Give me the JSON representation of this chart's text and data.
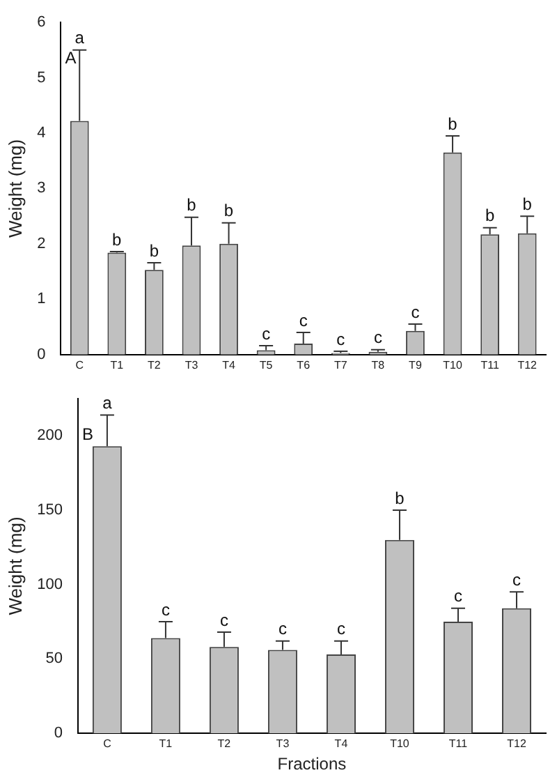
{
  "chart_data": [
    {
      "type": "bar",
      "ylabel": "Weight (mg)",
      "categories": [
        "C",
        "T1",
        "T2",
        "T3",
        "T4",
        "T5",
        "T6",
        "T7",
        "T8",
        "T9",
        "T10",
        "T11",
        "T12"
      ],
      "values": [
        4.22,
        1.84,
        1.53,
        1.97,
        2.0,
        0.08,
        0.2,
        0.03,
        0.05,
        0.43,
        3.65,
        2.17,
        2.19
      ],
      "color": "#c0c0c0",
      "errors": [
        [
          4.22,
          5.5
        ],
        [
          1.84,
          1.86
        ],
        [
          1.53,
          1.66
        ],
        [
          1.97,
          2.48
        ],
        [
          2.0,
          2.38
        ],
        [
          0.08,
          0.16
        ],
        [
          0.2,
          0.4
        ],
        [
          0.03,
          0.06
        ],
        [
          0.05,
          0.09
        ],
        [
          0.43,
          0.55
        ],
        [
          3.65,
          3.95
        ],
        [
          2.17,
          2.29
        ],
        [
          2.19,
          2.5
        ]
      ],
      "ylim": [
        0,
        6
      ],
      "yticks": [
        0,
        1,
        2,
        3,
        4,
        5,
        6
      ],
      "grid": false,
      "legend": false,
      "annotations": [
        "A",
        {
          "text": "a",
          "x": "C",
          "y": 5.5
        },
        {
          "text": "b",
          "x": "T1",
          "y": 1.86
        },
        {
          "text": "b",
          "x": "T2",
          "y": 1.66
        },
        {
          "text": "b",
          "x": "T3",
          "y": 2.48
        },
        {
          "text": "b",
          "x": "T4",
          "y": 2.38
        },
        {
          "text": "c",
          "x": "T5",
          "y": 0.16
        },
        {
          "text": "c",
          "x": "T6",
          "y": 0.4
        },
        {
          "text": "c",
          "x": "T7",
          "y": 0.06
        },
        {
          "text": "c",
          "x": "T8",
          "y": 0.09
        },
        {
          "text": "c",
          "x": "T9",
          "y": 0.55
        },
        {
          "text": "b",
          "x": "T10",
          "y": 3.95
        },
        {
          "text": "b",
          "x": "T11",
          "y": 2.29
        },
        {
          "text": "b",
          "x": "T12",
          "y": 2.5
        }
      ]
    },
    {
      "type": "bar",
      "xlabel": "Fractions",
      "ylabel": "Weight (mg)",
      "categories": [
        "C",
        "T1",
        "T2",
        "T3",
        "T4",
        "T10",
        "T11",
        "T12"
      ],
      "values": [
        193,
        64,
        58,
        56,
        53,
        130,
        75,
        84
      ],
      "color": "#c0c0c0",
      "errors": [
        [
          193,
          214
        ],
        [
          64,
          75
        ],
        [
          58,
          68
        ],
        [
          56,
          62
        ],
        [
          53,
          62
        ],
        [
          130,
          150
        ],
        [
          75,
          84
        ],
        [
          84,
          95
        ]
      ],
      "ylim": [
        0,
        225
      ],
      "yticks": [
        0,
        50,
        100,
        150,
        200
      ],
      "grid": false,
      "legend": false,
      "annotations": [
        "B",
        {
          "text": "a",
          "x": "C",
          "y": 214
        },
        {
          "text": "c",
          "x": "T1",
          "y": 75
        },
        {
          "text": "c",
          "x": "T2",
          "y": 68
        },
        {
          "text": "c",
          "x": "T3",
          "y": 62
        },
        {
          "text": "c",
          "x": "T4",
          "y": 62
        },
        {
          "text": "b",
          "x": "T10",
          "y": 150
        },
        {
          "text": "c",
          "x": "T11",
          "y": 84
        },
        {
          "text": "c",
          "x": "T12",
          "y": 95
        }
      ]
    }
  ]
}
